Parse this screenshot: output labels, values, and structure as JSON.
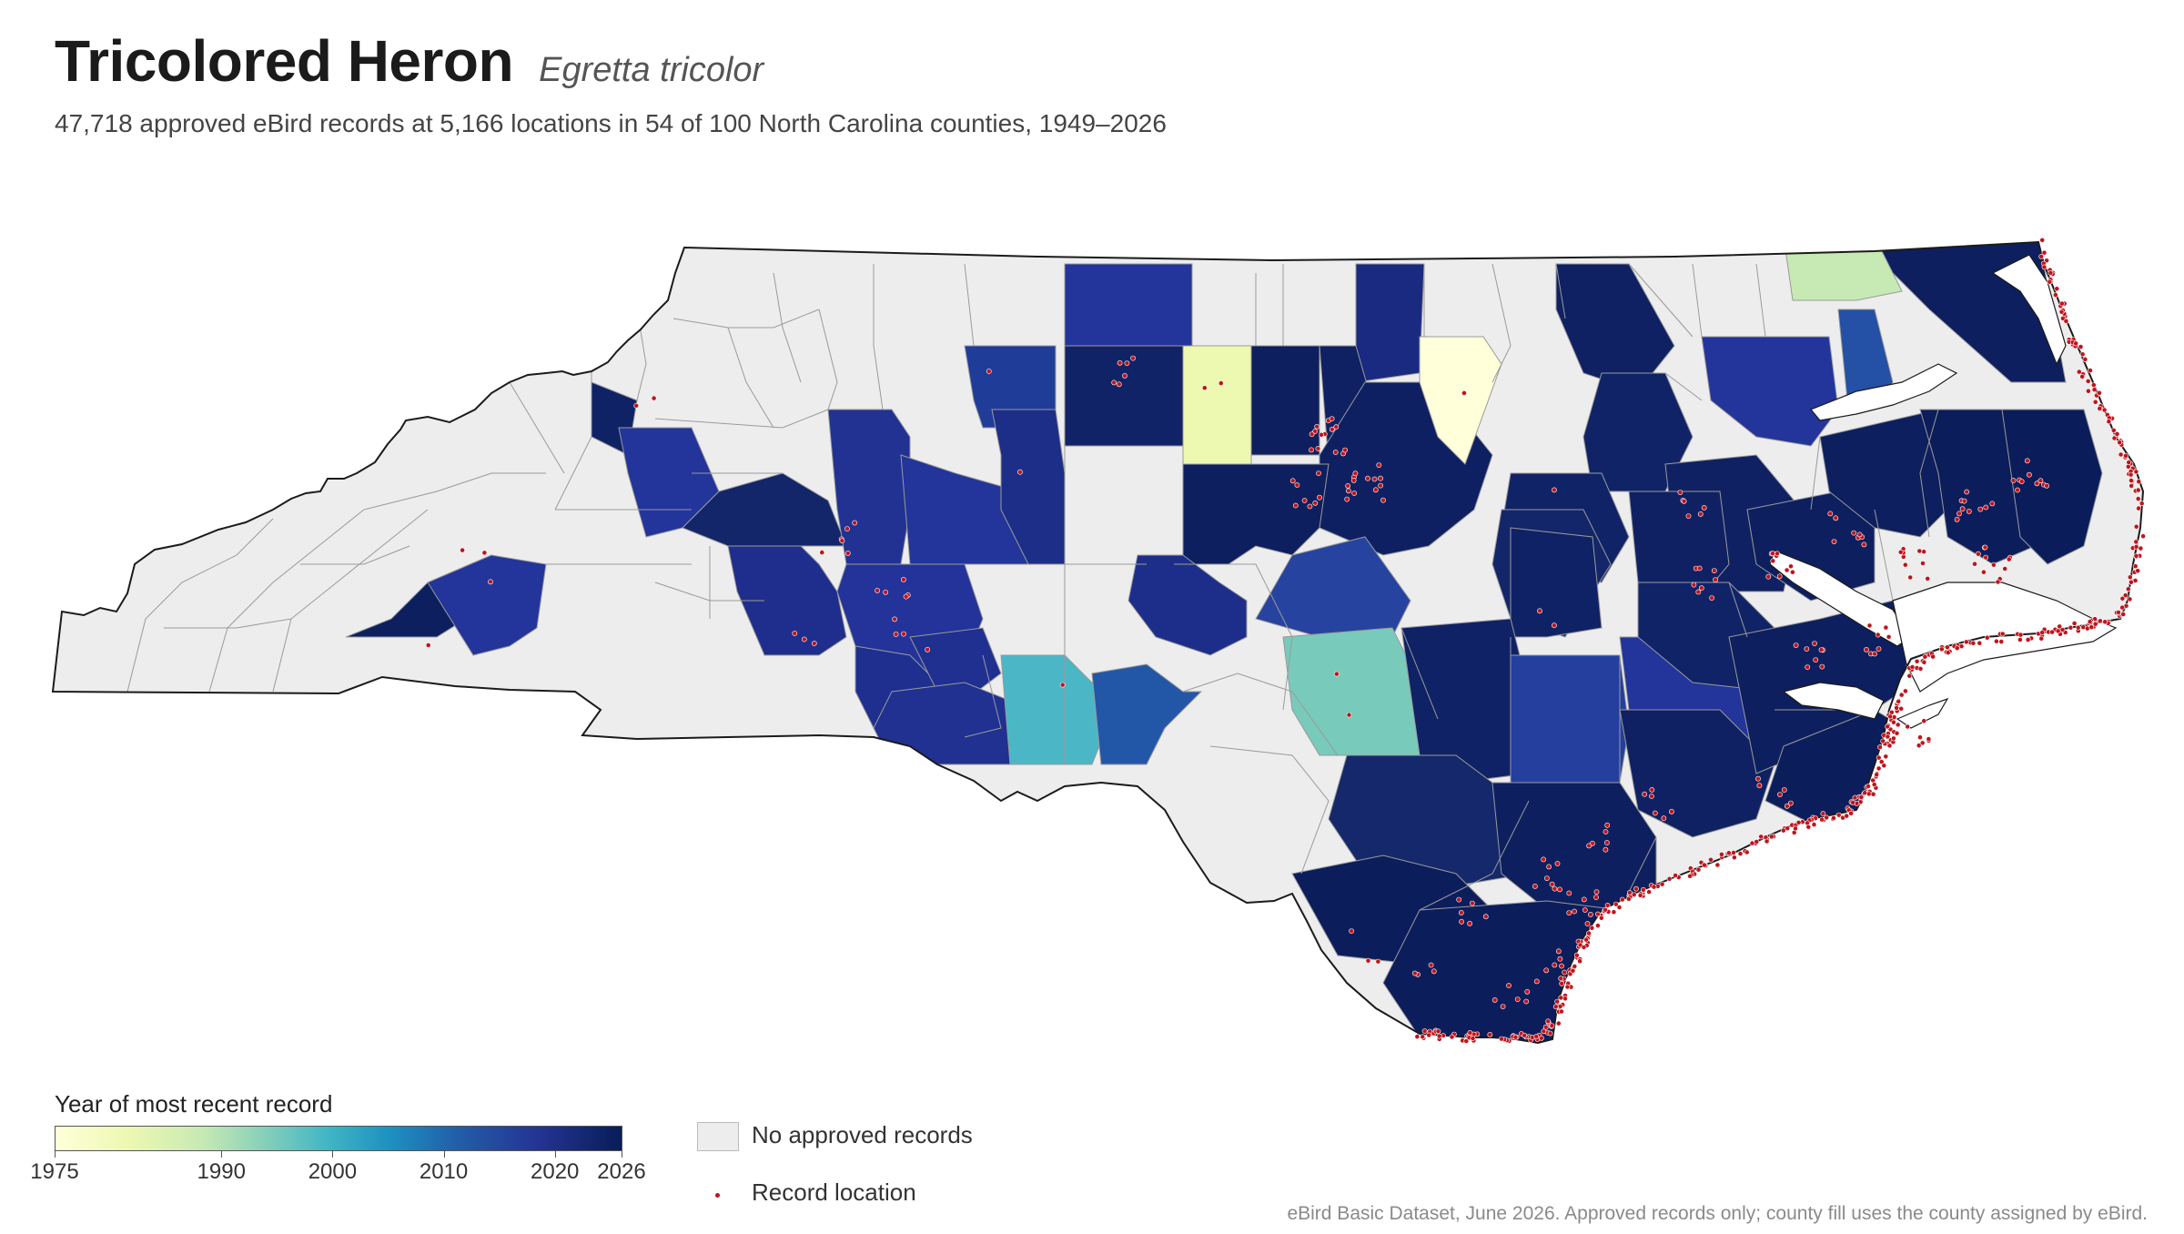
{
  "header": {
    "title": "Tricolored Heron",
    "scientific_name": "Egretta tricolor",
    "subtitle": "47,718 approved eBird records at 5,166 locations in 54 of 100 North Carolina counties, 1949–2026"
  },
  "legend": {
    "title": "Year of most recent record",
    "scale_min": 1975,
    "scale_max": 2026,
    "ticks": [
      "1975",
      "1990",
      "2000",
      "2010",
      "2020",
      "2026"
    ],
    "tick_values": [
      1975,
      1990,
      2000,
      2010,
      2020,
      2026
    ],
    "no_records_label": "No approved records",
    "record_location_label": "Record location",
    "colors": {
      "no_records": "#ededed",
      "record_dot": "#c0141c",
      "state_outline": "#1b1b1b",
      "county_line": "#9a9a9a"
    }
  },
  "credit": "eBird Basic Dataset, June 2026. Approved records only; county fill uses the county assigned by eBird."
}
